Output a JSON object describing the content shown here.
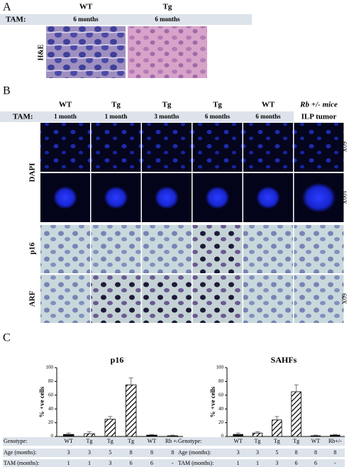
{
  "panel_a": {
    "label": "A",
    "columns": [
      "WT",
      "Tg"
    ],
    "row_label": "TAM:",
    "tam": [
      "6 months",
      "6 months"
    ],
    "stain": "H&E"
  },
  "panel_b": {
    "label": "B",
    "columns": [
      "WT",
      "Tg",
      "Tg",
      "Tg",
      "WT",
      "Rb +/- mice"
    ],
    "row_label": "TAM:",
    "tam": [
      "1 month",
      "1 month",
      "3 months",
      "6 months",
      "6 months",
      "ILP tumor"
    ],
    "stains": [
      "DAPI",
      "p16",
      "ARF"
    ],
    "magnifications": [
      "60X",
      "100X",
      "60X"
    ]
  },
  "panel_c": {
    "label": "C"
  },
  "chart_data": [
    {
      "type": "bar",
      "title": "p16",
      "y_label": "% +ve cells",
      "ylim": [
        0,
        100
      ],
      "yticks": [
        0,
        20,
        40,
        60,
        80,
        100
      ],
      "categories": [
        "WT",
        "Tg",
        "Tg",
        "Tg",
        "WT",
        "Rb +/-"
      ],
      "table_labels": [
        "Genotype:",
        "Age (months):",
        "TAM (months):"
      ],
      "age": [
        "3",
        "3",
        "5",
        "8",
        "8",
        "8"
      ],
      "tam": [
        "1",
        "1",
        "3",
        "6",
        "6",
        "-"
      ],
      "fills": [
        "solid",
        "hatched",
        "hatched",
        "hatched",
        "solid",
        "solid"
      ],
      "values": [
        3,
        4,
        25,
        75,
        2,
        1
      ],
      "errors": [
        2,
        3,
        4,
        10,
        1,
        1
      ]
    },
    {
      "type": "bar",
      "title": "SAHFs",
      "y_label": "% +ve cells",
      "ylim": [
        0,
        100
      ],
      "yticks": [
        0,
        20,
        40,
        60,
        80,
        100
      ],
      "categories": [
        "WT",
        "Tg",
        "Tg",
        "Tg",
        "WT",
        "Rb+/-"
      ],
      "table_labels": [
        "Genotype:",
        "Age (months):",
        "TAM (months):"
      ],
      "age": [
        "3",
        "3",
        "5",
        "8",
        "8",
        "8"
      ],
      "tam": [
        "1",
        "1",
        "3",
        "6",
        "6",
        "-"
      ],
      "fills": [
        "solid",
        "hatched",
        "hatched",
        "hatched",
        "solid",
        "solid"
      ],
      "values": [
        3,
        5,
        24,
        65,
        1,
        2
      ],
      "errors": [
        2,
        2,
        5,
        10,
        1,
        1
      ]
    }
  ]
}
